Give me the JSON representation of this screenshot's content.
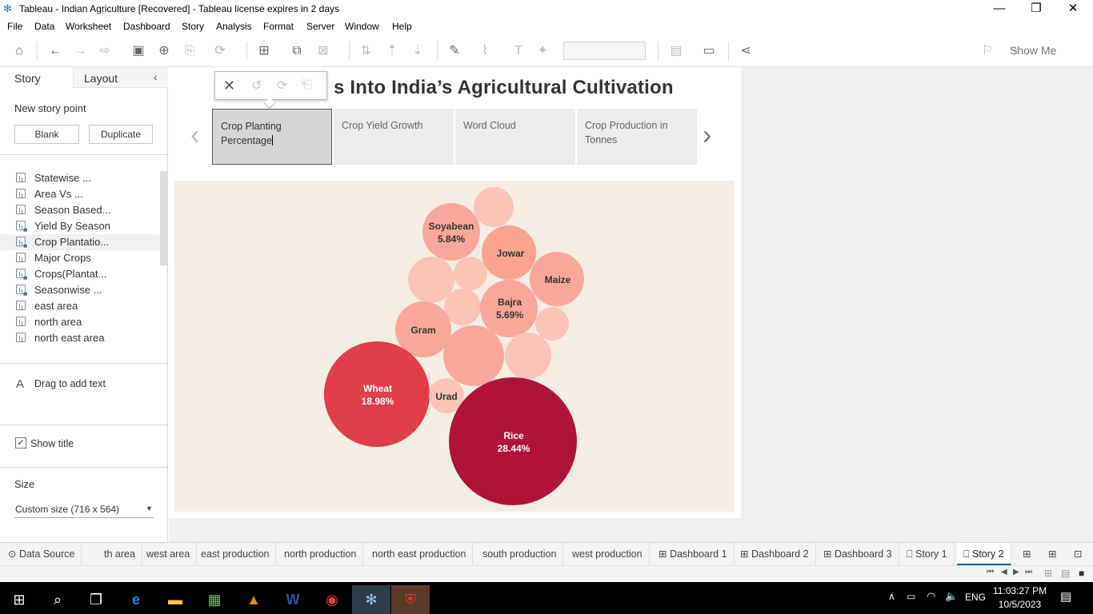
{
  "window": {
    "title": "Tableau - Indian Agriculture [Recovered] - Tableau license expires in 2 days",
    "minimize": "—",
    "restore": "❐",
    "close": "✕"
  },
  "menu": [
    "File",
    "Data",
    "Worksheet",
    "Dashboard",
    "Story",
    "Analysis",
    "Format",
    "Server",
    "Window",
    "Help"
  ],
  "toolbar": {
    "show_me": "Show Me"
  },
  "left_pane": {
    "tab_story": "Story",
    "tab_layout": "Layout",
    "new_story_point": "New story point",
    "blank_button": "Blank",
    "duplicate_button": "Duplicate",
    "sheets": [
      {
        "label": "Statewise ...",
        "dashboard": false
      },
      {
        "label": "Area Vs ...",
        "dashboard": false
      },
      {
        "label": "Season Based...",
        "dashboard": false
      },
      {
        "label": "Yield By Season",
        "dashboard": true
      },
      {
        "label": "Crop Plantatio...",
        "dashboard": true,
        "active": true
      },
      {
        "label": "Major Crops",
        "dashboard": false
      },
      {
        "label": "Crops(Plantat...",
        "dashboard": true
      },
      {
        "label": "Seasonwise ...",
        "dashboard": true
      },
      {
        "label": "east area",
        "dashboard": false
      },
      {
        "label": "north area",
        "dashboard": false
      },
      {
        "label": "north east area",
        "dashboard": false
      }
    ],
    "drag_text": "Drag to add text",
    "show_title": "Show title",
    "size_label": "Size",
    "size_value": "Custom size (716 x 564)"
  },
  "story": {
    "title": "s Into India’s Agricultural Cultivation",
    "points": [
      {
        "label": "Crop Planting Percentage",
        "active": true
      },
      {
        "label": "Crop Yield Growth"
      },
      {
        "label": "Word Cloud"
      },
      {
        "label": "Crop Production in Tonnes"
      }
    ]
  },
  "chart_data": {
    "type": "bubble",
    "bubbles": [
      {
        "name": "Rice",
        "percent": "28.44%",
        "color": "#b0133a"
      },
      {
        "name": "Wheat",
        "percent": "18.98%",
        "color": "#e03e48"
      },
      {
        "name": "Soyabean",
        "percent": "5.84%",
        "color": "#f9a79a"
      },
      {
        "name": "Bajra",
        "percent": "5.69%",
        "color": "#f9a79a"
      },
      {
        "name": "Jowar",
        "percent": "",
        "color": "#f9a390"
      },
      {
        "name": "Maize",
        "percent": "",
        "color": "#f9a79a"
      },
      {
        "name": "Gram",
        "percent": "",
        "color": "#f9a79a"
      },
      {
        "name": "Urad",
        "percent": "",
        "color": "#fcc3b8"
      }
    ]
  },
  "bottom_tabs": [
    "Data Source",
    "th area",
    "west area",
    "east production",
    "north production",
    "north east production",
    "south production",
    "west production",
    "Dashboard 1",
    "Dashboard 2",
    "Dashboard 3",
    "Story 1",
    "Story 2"
  ],
  "active_tab": "Story 2",
  "taskbar": {
    "language": "ENG",
    "time": "11:03:27 PM",
    "date": "10/5/2023"
  }
}
